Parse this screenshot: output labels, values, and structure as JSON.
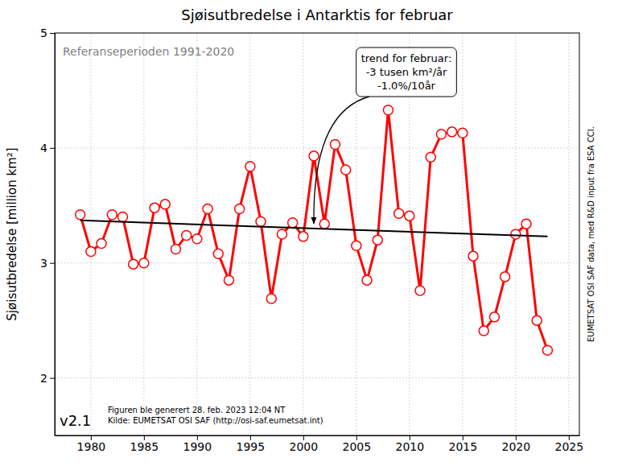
{
  "chart_data": {
    "type": "line",
    "title": "Sjøisutbredelse i Antarktis for februar",
    "subtitle": "Referanseperioden 1991-2020",
    "y_label": "Sjøisutbredelse [million km²]",
    "x": [
      1979,
      1980,
      1981,
      1982,
      1983,
      1984,
      1985,
      1986,
      1987,
      1988,
      1989,
      1990,
      1991,
      1992,
      1993,
      1994,
      1995,
      1996,
      1997,
      1998,
      1999,
      2000,
      2001,
      2002,
      2003,
      2004,
      2005,
      2006,
      2007,
      2008,
      2009,
      2010,
      2011,
      2012,
      2013,
      2014,
      2015,
      2016,
      2017,
      2018,
      2019,
      2020,
      2021,
      2022,
      2023
    ],
    "series": [
      {
        "values": [
          3.42,
          3.1,
          3.17,
          3.42,
          3.4,
          2.99,
          3.0,
          3.48,
          3.51,
          3.12,
          3.24,
          3.21,
          3.47,
          3.08,
          2.85,
          3.47,
          3.84,
          3.36,
          2.69,
          3.25,
          3.35,
          3.23,
          3.93,
          3.34,
          4.03,
          3.81,
          3.15,
          2.85,
          3.2,
          4.33,
          3.43,
          3.41,
          2.76,
          3.92,
          4.12,
          4.14,
          4.13,
          3.06,
          2.41,
          2.53,
          2.88,
          3.25,
          3.34,
          2.5,
          2.24
        ],
        "color": "#ff0000",
        "marker": "circle",
        "line_style": "solid"
      },
      {
        "type": "line",
        "x": [
          1979,
          2023
        ],
        "values": [
          3.37,
          3.23
        ],
        "color": "#000000",
        "marker": "none",
        "line_style": "solid"
      }
    ],
    "xlim": [
      1976.6,
      2026
    ],
    "ylim": [
      1.5,
      5
    ],
    "xticks": [
      1980,
      1985,
      1990,
      1995,
      2000,
      2005,
      2010,
      2015,
      2020,
      2025
    ],
    "yticks": [
      2,
      3,
      4,
      5
    ],
    "grid": true,
    "annotations": [
      {
        "lines": [
          "trend for februar:",
          "-3 tusen km²/år",
          "-1.0%/10år"
        ],
        "x": 2001,
        "y": 3.3
      }
    ],
    "version": "v2.1",
    "footer": [
      "Figuren ble generert 28. feb. 2023 12:04 NT",
      "Kilde: EUMETSAT OSI SAF (http://osi-saf.eumetsat.int)"
    ],
    "credit": "EUMETSAT OSI SAF data, med R&D input fra ESA CCI."
  }
}
